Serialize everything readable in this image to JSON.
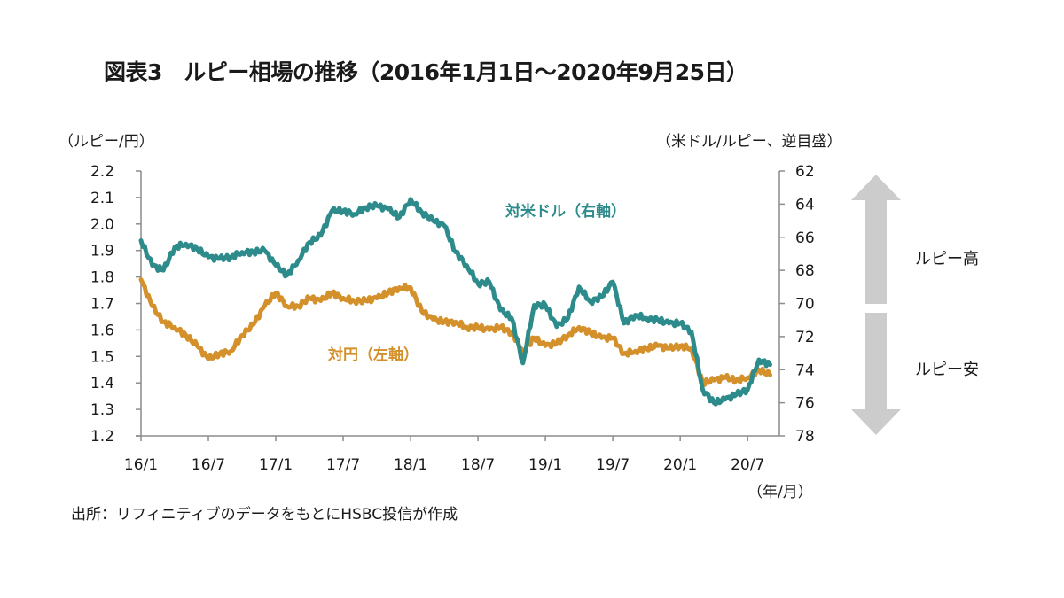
{
  "chart_data": {
    "type": "line",
    "title": "図表3　ルピー相場の推移（2016年1月1日～2020年9月25日）",
    "left_axis_label": "（ルピー/円）",
    "right_axis_label": "（米ドル/ルピー、逆目盛）",
    "xlabel": "（年/月）",
    "left_ylim": [
      1.2,
      2.2
    ],
    "right_ylim": [
      62,
      78
    ],
    "right_axis_inverted": true,
    "left_ticks": [
      "2.2",
      "2.1",
      "2.0",
      "1.9",
      "1.8",
      "1.7",
      "1.6",
      "1.5",
      "1.4",
      "1.3",
      "1.2"
    ],
    "right_ticks": [
      "62",
      "64",
      "66",
      "68",
      "70",
      "72",
      "74",
      "76",
      "78"
    ],
    "x_ticks": [
      "16/1",
      "16/7",
      "17/1",
      "17/7",
      "18/1",
      "18/7",
      "19/1",
      "19/7",
      "20/1",
      "20/7"
    ],
    "x_range_months": [
      0,
      56.8
    ],
    "grid": false,
    "series": [
      {
        "name": "対米ドル（右軸）",
        "axis": "right",
        "color": "#2e8b8b",
        "x_months": [
          0,
          1,
          2,
          3,
          4,
          5,
          6,
          7,
          8,
          9,
          10,
          11,
          12,
          13,
          14,
          15,
          16,
          17,
          18,
          19,
          20,
          21,
          22,
          23,
          24,
          25,
          26,
          27,
          28,
          29,
          30,
          31,
          32,
          33,
          34,
          35,
          36,
          37,
          38,
          39,
          40,
          41,
          42,
          43,
          44,
          45,
          46,
          47,
          48,
          49,
          50,
          51,
          52,
          53,
          54,
          55,
          56
        ],
        "values": [
          66.2,
          67.7,
          68.0,
          66.6,
          66.4,
          66.7,
          67.2,
          67.3,
          67.2,
          66.9,
          66.9,
          66.8,
          67.7,
          68.3,
          67.4,
          66.3,
          65.9,
          64.4,
          64.4,
          64.6,
          64.2,
          64.1,
          64.3,
          64.8,
          63.7,
          64.5,
          65.0,
          65.3,
          66.9,
          67.7,
          68.8,
          68.7,
          70.4,
          70.9,
          73.6,
          70.1,
          70.1,
          71.4,
          70.9,
          69.0,
          69.9,
          69.6,
          68.7,
          71.2,
          70.7,
          70.9,
          71.0,
          71.2,
          71.2,
          71.7,
          75.2,
          76.0,
          75.8,
          75.5,
          75.2,
          73.4,
          73.7
        ]
      },
      {
        "name": "対円（左軸）",
        "axis": "left",
        "color": "#d4902a",
        "x_months": [
          0,
          1,
          2,
          3,
          4,
          5,
          6,
          7,
          8,
          9,
          10,
          11,
          12,
          13,
          14,
          15,
          16,
          17,
          18,
          19,
          20,
          21,
          22,
          23,
          24,
          25,
          26,
          27,
          28,
          29,
          30,
          31,
          32,
          33,
          34,
          35,
          36,
          37,
          38,
          39,
          40,
          41,
          42,
          43,
          44,
          45,
          46,
          47,
          48,
          49,
          50,
          51,
          52,
          53,
          54,
          55,
          56
        ],
        "values": [
          1.79,
          1.69,
          1.63,
          1.61,
          1.58,
          1.54,
          1.49,
          1.51,
          1.52,
          1.58,
          1.62,
          1.69,
          1.74,
          1.69,
          1.69,
          1.72,
          1.71,
          1.74,
          1.72,
          1.71,
          1.71,
          1.72,
          1.74,
          1.76,
          1.76,
          1.67,
          1.64,
          1.63,
          1.63,
          1.61,
          1.61,
          1.6,
          1.61,
          1.59,
          1.52,
          1.57,
          1.54,
          1.55,
          1.58,
          1.61,
          1.59,
          1.57,
          1.57,
          1.51,
          1.52,
          1.53,
          1.54,
          1.53,
          1.54,
          1.53,
          1.4,
          1.41,
          1.42,
          1.41,
          1.42,
          1.45,
          1.43
        ]
      }
    ],
    "annotations": {
      "rupee_up": "ルピー高",
      "rupee_down": "ルピー安",
      "arrow_color": "#cccccc"
    },
    "source": "出所：リフィニティブのデータをもとにHSBC投信が作成"
  }
}
